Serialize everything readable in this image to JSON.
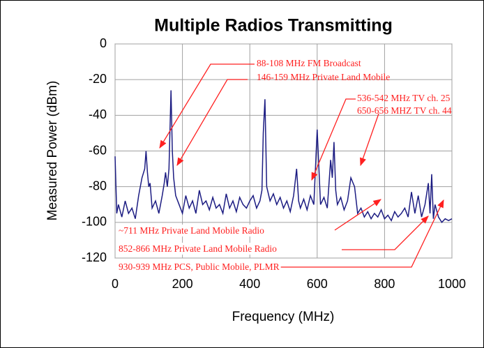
{
  "chart_data": {
    "type": "line",
    "title": "Multiple Radios Transmitting",
    "x_label": "Frequency (MHz)",
    "y_label": "Measured Power (dBm)",
    "x": [
      0,
      5,
      10,
      20,
      30,
      40,
      50,
      60,
      70,
      80,
      88,
      92,
      96,
      100,
      104,
      110,
      120,
      130,
      140,
      146,
      150,
      155,
      160,
      166,
      170,
      174,
      180,
      190,
      200,
      210,
      220,
      230,
      240,
      250,
      260,
      270,
      280,
      290,
      300,
      310,
      320,
      330,
      340,
      350,
      360,
      370,
      380,
      390,
      400,
      410,
      420,
      430,
      436,
      440,
      445,
      450,
      460,
      470,
      480,
      490,
      500,
      510,
      520,
      530,
      539,
      545,
      550,
      560,
      570,
      580,
      590,
      600,
      610,
      620,
      630,
      640,
      645,
      650,
      655,
      660,
      670,
      680,
      690,
      700,
      711,
      720,
      730,
      740,
      750,
      760,
      770,
      780,
      790,
      800,
      810,
      820,
      830,
      840,
      850,
      860,
      870,
      880,
      890,
      900,
      910,
      920,
      930,
      935,
      940,
      945,
      950,
      960,
      970,
      980,
      990,
      1000
    ],
    "series": [
      {
        "color": "#1c1c82",
        "values": [
          -63,
          -95,
          -90,
          -97,
          -88,
          -95,
          -92,
          -98,
          -85,
          -75,
          -70,
          -60,
          -72,
          -80,
          -78,
          -92,
          -88,
          -95,
          -85,
          -78,
          -72,
          -80,
          -70,
          -26,
          -60,
          -75,
          -85,
          -90,
          -95,
          -85,
          -92,
          -88,
          -95,
          -82,
          -90,
          -88,
          -93,
          -86,
          -92,
          -90,
          -95,
          -84,
          -92,
          -88,
          -94,
          -86,
          -90,
          -92,
          -88,
          -85,
          -92,
          -88,
          -82,
          -50,
          -31,
          -80,
          -88,
          -84,
          -90,
          -86,
          -92,
          -88,
          -94,
          -85,
          -70,
          -88,
          -92,
          -87,
          -93,
          -85,
          -90,
          -48,
          -90,
          -86,
          -92,
          -65,
          -75,
          -55,
          -82,
          -90,
          -86,
          -93,
          -88,
          -75,
          -80,
          -95,
          -92,
          -97,
          -94,
          -98,
          -95,
          -97,
          -93,
          -98,
          -96,
          -99,
          -94,
          -97,
          -95,
          -92,
          -97,
          -83,
          -95,
          -85,
          -97,
          -90,
          -78,
          -95,
          -73,
          -98,
          -90,
          -97,
          -100,
          -98,
          -99,
          -98
        ]
      }
    ],
    "xlim": [
      0,
      1000
    ],
    "xticks": [
      0,
      200,
      400,
      600,
      800,
      1000
    ],
    "ylim": [
      -120,
      0
    ],
    "yticks": [
      -120,
      -100,
      -80,
      -60,
      -40,
      -20,
      0
    ],
    "grid": true,
    "annotations": [
      "88-108 MHz FM Broadcast",
      "146-159 MHz Private Land Mobile",
      "536-542 MHz TV ch. 25",
      "650-656 MHZ TV ch. 44",
      "~711 MHz Private Land Mobile Radio",
      "852-866 MHz Private Land Mobile Radio",
      "930-939 MHz PCS, Public Mobile, PLMR"
    ]
  }
}
